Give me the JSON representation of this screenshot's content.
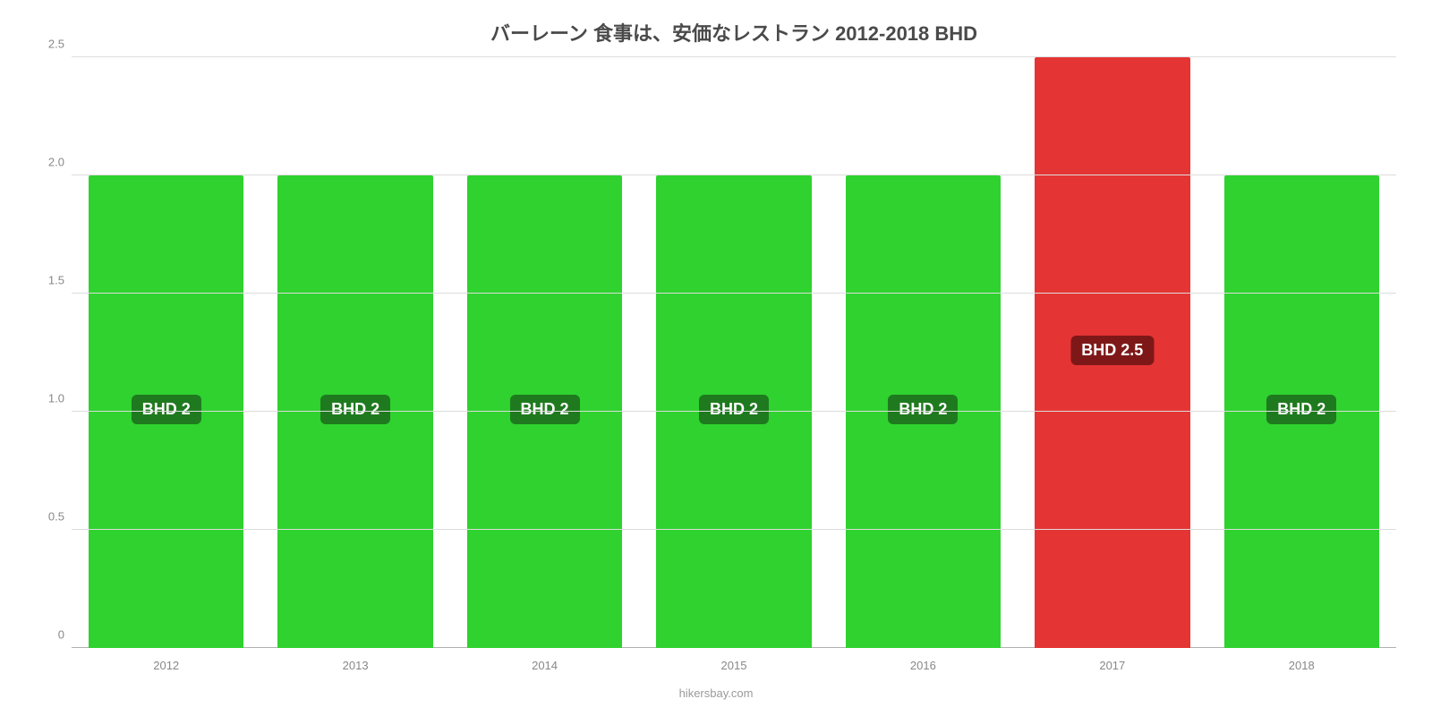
{
  "chart": {
    "type": "bar",
    "title": "バーレーン 食事は、安価なレストラン 2012-2018 BHD",
    "title_fontsize": 22,
    "title_color": "#4a4a4a",
    "attribution": "hikersbay.com",
    "attribution_color": "#9a9a9a",
    "background_color": "#ffffff",
    "grid_color": "#dcdcdc",
    "axis_color": "#b0b0b0",
    "tick_fontsize": 13,
    "tick_color": "#888888",
    "ylim": [
      0,
      2.5
    ],
    "ytick_step": 0.5,
    "yticks": [
      "0",
      "0.5",
      "1.0",
      "1.5",
      "2.0",
      "2.5"
    ],
    "categories": [
      "2012",
      "2013",
      "2014",
      "2015",
      "2016",
      "2017",
      "2018"
    ],
    "values": [
      2,
      2,
      2,
      2,
      2,
      2.5,
      2
    ],
    "bar_colors": [
      "#2fd22f",
      "#2fd22f",
      "#2fd22f",
      "#2fd22f",
      "#2fd22f",
      "#e53434",
      "#2fd22f"
    ],
    "bar_width": 0.82,
    "value_labels": [
      "BHD 2",
      "BHD 2",
      "BHD 2",
      "BHD 2",
      "BHD 2",
      "BHD 2.5",
      "BHD 2"
    ],
    "value_label_bg": [
      "#1f7a1f",
      "#1f7a1f",
      "#1f7a1f",
      "#1f7a1f",
      "#1f7a1f",
      "#7e1818",
      "#1f7a1f"
    ],
    "value_label_fontsize": 18,
    "value_label_color": "#ffffff"
  }
}
